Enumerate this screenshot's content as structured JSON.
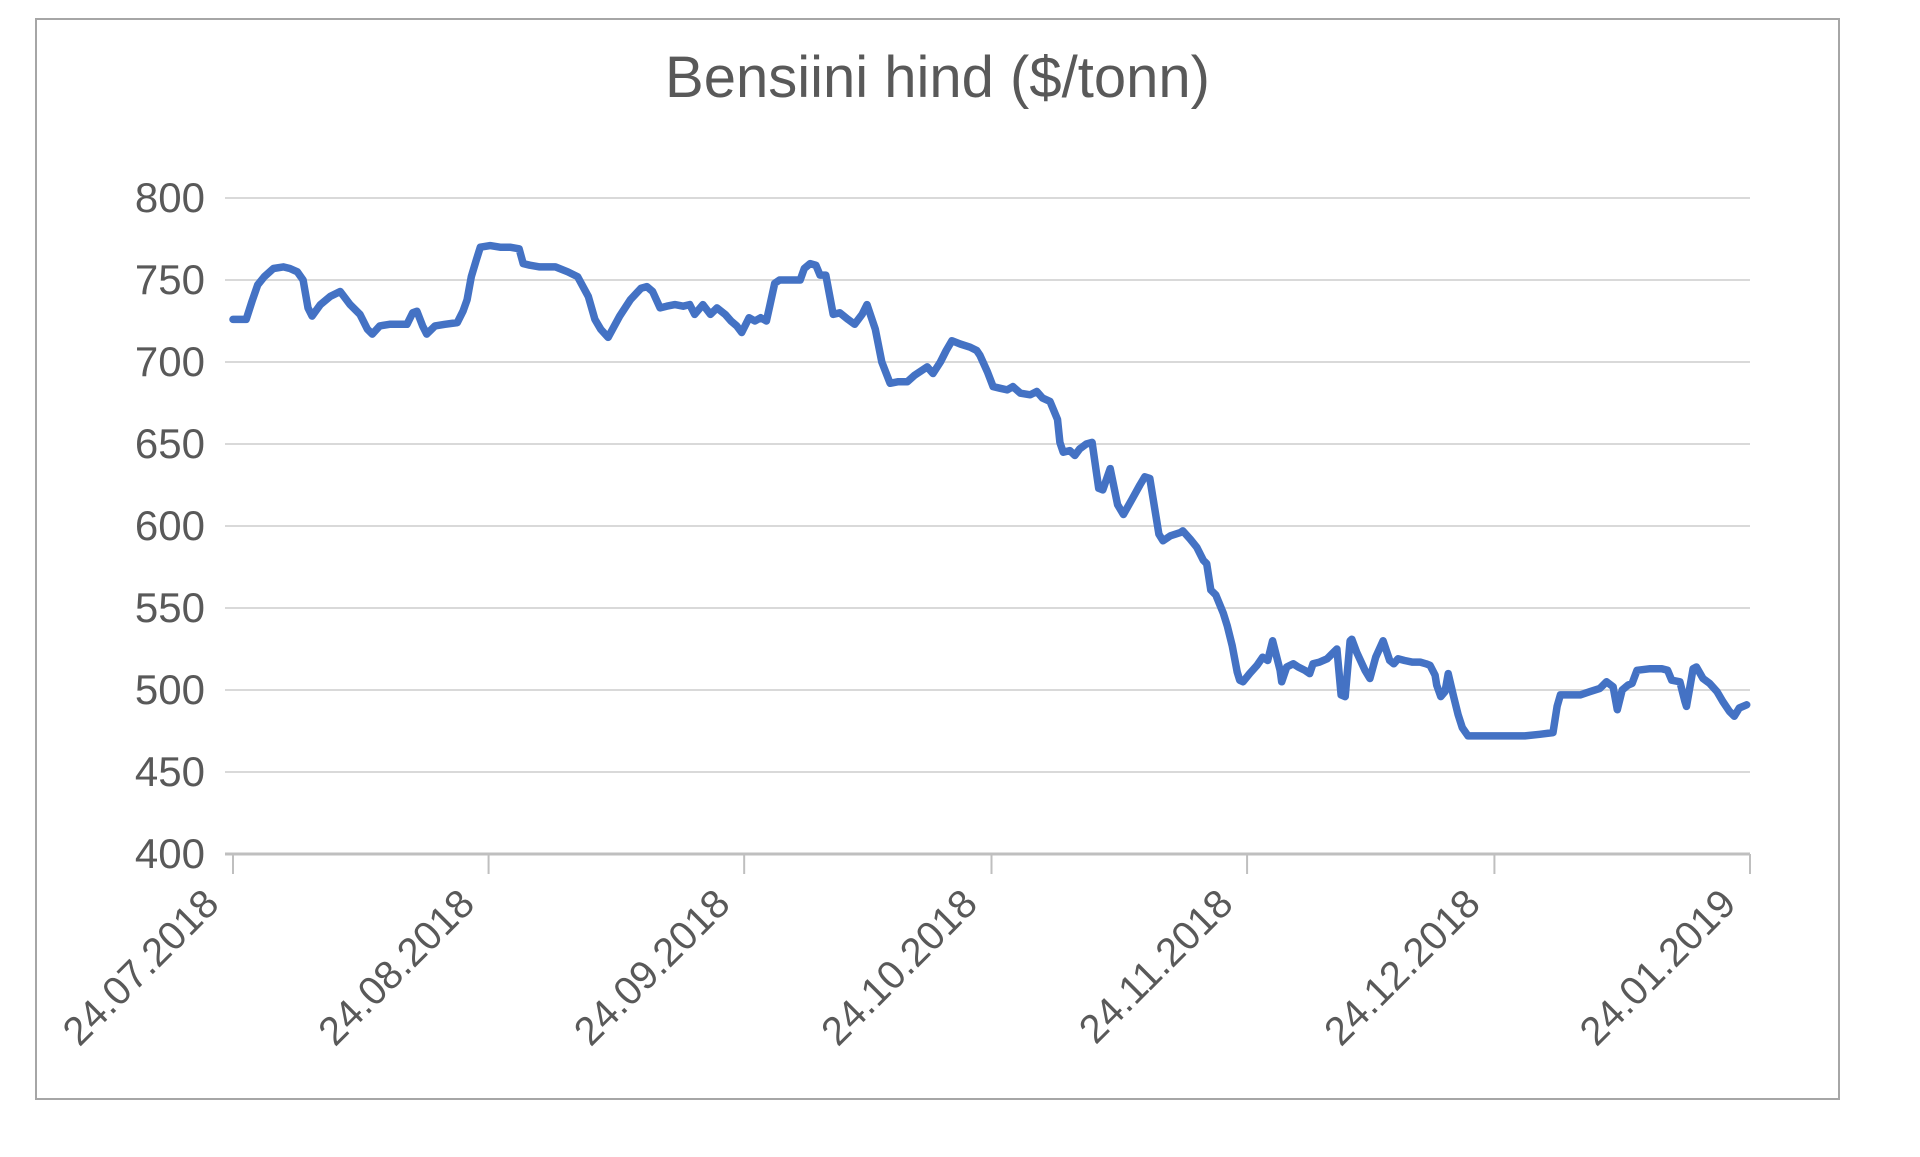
{
  "chart": {
    "title": "Bensiini hind ($/tonn)",
    "colors": {
      "series": "#4472C4",
      "gridline": "#D9D9D9",
      "axis_line": "#BFBFBF",
      "text": "#595959",
      "border": "#A6A6A6",
      "background": "#FFFFFF"
    },
    "y_axis": {
      "min": 400,
      "max": 800,
      "step": 50,
      "tick_labels": [
        "800",
        "750",
        "700",
        "650",
        "600",
        "550",
        "500",
        "450",
        "400"
      ]
    },
    "x_axis": {
      "tick_labels": [
        "24.07.2018",
        "24.08.2018",
        "24.09.2018",
        "24.10.2018",
        "24.11.2018",
        "24.12.2018",
        "24.01.2019"
      ],
      "tick_days": [
        0,
        31,
        62,
        92,
        123,
        153,
        184
      ],
      "total_days": 184
    }
  },
  "chart_data": {
    "type": "line",
    "title": "Bensiini hind ($/tonn)",
    "ylabel": "",
    "xlabel": "",
    "ylim": [
      400,
      800
    ],
    "grid": true,
    "legend": false,
    "x_unit": "days since 24.07.2018",
    "x_tick_labels": [
      "24.07.2018",
      "24.08.2018",
      "24.09.2018",
      "24.10.2018",
      "24.11.2018",
      "24.12.2018",
      "24.01.2019"
    ],
    "x_tick_days": [
      0,
      31,
      62,
      92,
      123,
      153,
      184
    ],
    "series_name": "Bensiini hind",
    "points": [
      [
        0,
        726
      ],
      [
        1.6,
        726
      ],
      [
        2.3,
        737
      ],
      [
        3,
        747
      ],
      [
        3.8,
        752
      ],
      [
        4.9,
        757
      ],
      [
        6.1,
        758
      ],
      [
        6.9,
        757
      ],
      [
        7.8,
        755
      ],
      [
        8.5,
        750
      ],
      [
        9.1,
        733
      ],
      [
        9.6,
        728
      ],
      [
        10.6,
        735
      ],
      [
        11.8,
        740
      ],
      [
        13,
        743
      ],
      [
        14.2,
        735
      ],
      [
        15.4,
        729
      ],
      [
        16.3,
        720
      ],
      [
        16.9,
        717
      ],
      [
        17.8,
        722
      ],
      [
        19,
        723
      ],
      [
        20.3,
        723
      ],
      [
        21.1,
        723
      ],
      [
        21.8,
        730
      ],
      [
        22.3,
        731
      ],
      [
        23,
        722
      ],
      [
        23.5,
        717
      ],
      [
        24.5,
        722
      ],
      [
        25.7,
        723
      ],
      [
        27.2,
        724
      ],
      [
        27.9,
        731
      ],
      [
        28.4,
        738
      ],
      [
        28.9,
        752
      ],
      [
        29.5,
        762
      ],
      [
        30,
        770
      ],
      [
        31.2,
        771
      ],
      [
        32.4,
        770
      ],
      [
        33.6,
        770
      ],
      [
        34.7,
        769
      ],
      [
        35.2,
        760
      ],
      [
        36,
        759
      ],
      [
        37.2,
        758
      ],
      [
        39.1,
        758
      ],
      [
        40.6,
        755
      ],
      [
        41.8,
        752
      ],
      [
        43.1,
        740
      ],
      [
        43.9,
        726
      ],
      [
        44.6,
        720
      ],
      [
        45.5,
        715
      ],
      [
        46.9,
        728
      ],
      [
        48.2,
        738
      ],
      [
        49.5,
        745
      ],
      [
        50.2,
        746
      ],
      [
        50.9,
        743
      ],
      [
        51.8,
        733
      ],
      [
        52.6,
        734
      ],
      [
        53.6,
        735
      ],
      [
        54.6,
        734
      ],
      [
        55.4,
        735
      ],
      [
        56,
        729
      ],
      [
        57,
        735
      ],
      [
        57.9,
        729
      ],
      [
        58.7,
        733
      ],
      [
        59.7,
        729
      ],
      [
        60.4,
        725
      ],
      [
        61.1,
        722
      ],
      [
        61.7,
        718
      ],
      [
        62.6,
        727
      ],
      [
        63.3,
        725
      ],
      [
        64,
        727
      ],
      [
        64.7,
        725
      ],
      [
        65.1,
        734
      ],
      [
        65.7,
        748
      ],
      [
        66.3,
        750
      ],
      [
        67.6,
        750
      ],
      [
        68.8,
        750
      ],
      [
        69.3,
        757
      ],
      [
        70,
        760
      ],
      [
        70.7,
        759
      ],
      [
        71.2,
        753
      ],
      [
        71.9,
        753
      ],
      [
        72.8,
        729
      ],
      [
        73.6,
        730
      ],
      [
        74.6,
        726
      ],
      [
        75.4,
        723
      ],
      [
        76.3,
        729
      ],
      [
        76.9,
        735
      ],
      [
        77.9,
        720
      ],
      [
        78.7,
        700
      ],
      [
        79.7,
        687
      ],
      [
        80.7,
        688
      ],
      [
        81.8,
        688
      ],
      [
        82.7,
        692
      ],
      [
        84.2,
        697
      ],
      [
        84.9,
        693
      ],
      [
        85.8,
        700
      ],
      [
        86.5,
        707
      ],
      [
        87.2,
        713
      ],
      [
        88.2,
        711
      ],
      [
        89.4,
        709
      ],
      [
        90.2,
        707
      ],
      [
        90.6,
        704
      ],
      [
        91.5,
        694
      ],
      [
        92.2,
        685
      ],
      [
        93,
        684
      ],
      [
        93.9,
        683
      ],
      [
        94.6,
        685
      ],
      [
        95.5,
        681
      ],
      [
        96.7,
        680
      ],
      [
        97.5,
        682
      ],
      [
        98.2,
        678
      ],
      [
        99.1,
        676
      ],
      [
        100,
        665
      ],
      [
        100.3,
        651
      ],
      [
        100.7,
        645
      ],
      [
        101.5,
        646
      ],
      [
        102.1,
        643
      ],
      [
        102.7,
        647
      ],
      [
        103.5,
        650
      ],
      [
        104.2,
        651
      ],
      [
        105,
        623
      ],
      [
        105.5,
        622
      ],
      [
        106.4,
        635
      ],
      [
        107.3,
        613
      ],
      [
        108,
        607
      ],
      [
        109,
        616
      ],
      [
        110,
        625
      ],
      [
        110.6,
        630
      ],
      [
        111.2,
        629
      ],
      [
        112.3,
        595
      ],
      [
        112.8,
        591
      ],
      [
        113.7,
        594
      ],
      [
        114.9,
        596
      ],
      [
        115.2,
        597
      ],
      [
        116.1,
        592
      ],
      [
        116.9,
        587
      ],
      [
        117.7,
        579
      ],
      [
        118.1,
        577
      ],
      [
        118.6,
        561
      ],
      [
        119.2,
        558
      ],
      [
        120.1,
        547
      ],
      [
        120.6,
        539
      ],
      [
        121.2,
        527
      ],
      [
        121.8,
        511
      ],
      [
        122.1,
        506
      ],
      [
        122.5,
        505
      ],
      [
        123.3,
        510
      ],
      [
        124.2,
        515
      ],
      [
        124.9,
        520
      ],
      [
        125.5,
        518
      ],
      [
        126.1,
        530
      ],
      [
        127,
        512
      ],
      [
        127.2,
        505
      ],
      [
        127.8,
        514
      ],
      [
        128.6,
        516
      ],
      [
        129.2,
        514
      ],
      [
        130,
        512
      ],
      [
        130.6,
        510
      ],
      [
        131,
        516
      ],
      [
        131.8,
        517
      ],
      [
        132.7,
        519
      ],
      [
        133.5,
        523
      ],
      [
        133.9,
        525
      ],
      [
        134.4,
        497
      ],
      [
        134.9,
        496
      ],
      [
        135.5,
        530
      ],
      [
        135.7,
        531
      ],
      [
        136.3,
        523
      ],
      [
        137.3,
        512
      ],
      [
        137.9,
        507
      ],
      [
        138.6,
        520
      ],
      [
        139.5,
        530
      ],
      [
        140.3,
        518
      ],
      [
        140.8,
        516
      ],
      [
        141.3,
        519
      ],
      [
        142.1,
        518
      ],
      [
        143,
        517
      ],
      [
        144,
        517
      ],
      [
        144.7,
        516
      ],
      [
        145.2,
        515
      ],
      [
        145.8,
        509
      ],
      [
        146,
        503
      ],
      [
        146.5,
        496
      ],
      [
        147,
        499
      ],
      [
        147.4,
        510
      ],
      [
        148,
        497
      ],
      [
        148.6,
        485
      ],
      [
        149.1,
        477
      ],
      [
        149.8,
        472
      ],
      [
        151.2,
        472
      ],
      [
        153.1,
        472
      ],
      [
        154.9,
        472
      ],
      [
        156.7,
        472
      ],
      [
        158.5,
        473
      ],
      [
        160.1,
        474
      ],
      [
        160.6,
        490
      ],
      [
        161,
        497
      ],
      [
        162.2,
        497
      ],
      [
        163.4,
        497
      ],
      [
        164.6,
        499
      ],
      [
        165.8,
        501
      ],
      [
        166.6,
        505
      ],
      [
        167.4,
        502
      ],
      [
        167.9,
        488
      ],
      [
        168.5,
        500
      ],
      [
        169.2,
        503
      ],
      [
        169.7,
        504
      ],
      [
        170.3,
        512
      ],
      [
        171.9,
        513
      ],
      [
        173.3,
        513
      ],
      [
        174,
        512
      ],
      [
        174.5,
        506
      ],
      [
        175.5,
        505
      ],
      [
        176.1,
        493
      ],
      [
        176.3,
        490
      ],
      [
        177.1,
        513
      ],
      [
        177.5,
        514
      ],
      [
        178.3,
        507
      ],
      [
        179.1,
        504
      ],
      [
        180,
        499
      ],
      [
        180.7,
        493
      ],
      [
        181.5,
        487
      ],
      [
        182.1,
        484
      ],
      [
        182.7,
        489
      ],
      [
        183.6,
        491
      ]
    ]
  }
}
